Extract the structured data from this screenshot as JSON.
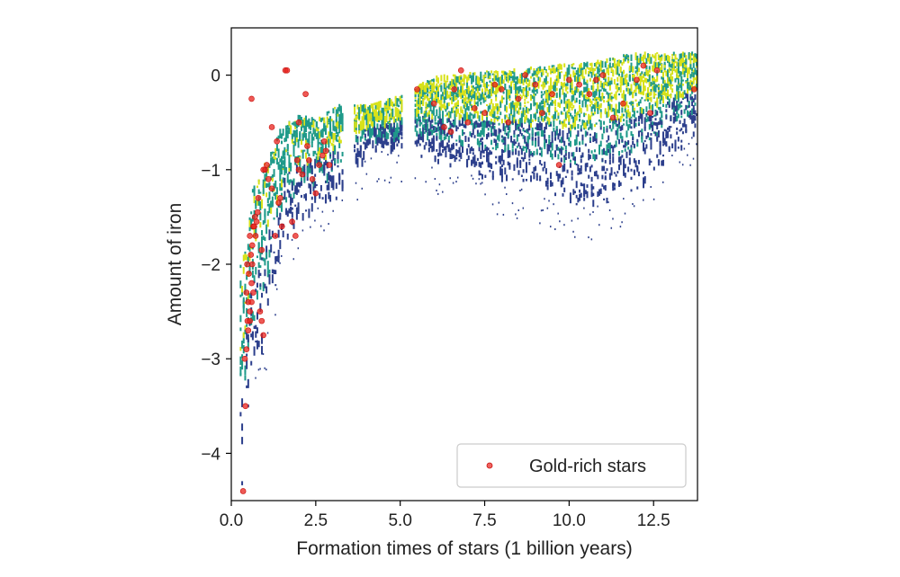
{
  "chart_data": {
    "type": "scatter",
    "xlabel": "Formation times of stars (1 billion years)",
    "ylabel": "Amount of iron",
    "xlim": [
      0,
      13.8
    ],
    "ylim": [
      -4.5,
      0.5
    ],
    "x_ticks": [
      0.0,
      2.5,
      5.0,
      7.5,
      10.0,
      12.5
    ],
    "x_tick_labels": [
      "0.0",
      "2.5",
      "5.0",
      "7.5",
      "10.0",
      "12.5"
    ],
    "y_ticks": [
      0,
      -1,
      -2,
      -3,
      -4
    ],
    "y_tick_labels": [
      "0",
      "−1",
      "−2",
      "−3",
      "−4"
    ],
    "grid": false,
    "legend": {
      "placement": "lower-right"
    },
    "colors": {
      "gold_rich": "#e8211c",
      "density_low": "#2c3f8c",
      "density_mid": "#1f9a8a",
      "density_high": "#d8e21a"
    },
    "background_density_envelope": [
      {
        "x": 0.3,
        "y_low": -4.4,
        "y_high": -2.0
      },
      {
        "x": 0.6,
        "y_low": -3.3,
        "y_high": -1.2
      },
      {
        "x": 1.0,
        "y_low": -2.8,
        "y_high": -0.9
      },
      {
        "x": 1.5,
        "y_low": -1.8,
        "y_high": -0.5
      },
      {
        "x": 2.0,
        "y_low": -1.5,
        "y_high": -0.4
      },
      {
        "x": 2.5,
        "y_low": -1.4,
        "y_high": -0.45
      },
      {
        "x": 3.2,
        "y_low": -1.3,
        "y_high": -0.3
      },
      {
        "x": 4.0,
        "y_low": -0.8,
        "y_high": -0.3
      },
      {
        "x": 5.0,
        "y_low": -0.8,
        "y_high": -0.2
      },
      {
        "x": 6.0,
        "y_low": -0.9,
        "y_high": 0.0
      },
      {
        "x": 7.5,
        "y_low": -1.1,
        "y_high": 0.05
      },
      {
        "x": 9.0,
        "y_low": -1.2,
        "y_high": 0.1
      },
      {
        "x": 10.5,
        "y_low": -1.4,
        "y_high": 0.15
      },
      {
        "x": 12.0,
        "y_low": -1.2,
        "y_high": 0.25
      },
      {
        "x": 13.7,
        "y_low": -0.6,
        "y_high": 0.25
      }
    ],
    "series": [
      {
        "name": "Gold-rich stars",
        "marker": "circle",
        "points": [
          [
            0.35,
            -4.4
          ],
          [
            0.42,
            -3.5
          ],
          [
            0.4,
            -3.0
          ],
          [
            0.45,
            -2.9
          ],
          [
            0.5,
            -2.7
          ],
          [
            0.48,
            -2.6
          ],
          [
            0.55,
            -2.5
          ],
          [
            0.5,
            -2.4
          ],
          [
            0.45,
            -2.3
          ],
          [
            0.6,
            -2.2
          ],
          [
            0.52,
            -2.1
          ],
          [
            0.47,
            -2.0
          ],
          [
            0.58,
            -1.9
          ],
          [
            0.62,
            -1.8
          ],
          [
            0.55,
            -1.7
          ],
          [
            0.65,
            -1.6
          ],
          [
            0.7,
            -1.5
          ],
          [
            0.68,
            -1.6
          ],
          [
            0.72,
            -1.7
          ],
          [
            0.6,
            -2.4
          ],
          [
            0.65,
            -2.3
          ],
          [
            0.55,
            -2.6
          ],
          [
            0.62,
            -2.0
          ],
          [
            0.75,
            -1.55
          ],
          [
            0.78,
            -1.45
          ],
          [
            0.8,
            -1.3
          ],
          [
            0.85,
            -2.5
          ],
          [
            0.9,
            -2.6
          ],
          [
            0.95,
            -2.75
          ],
          [
            0.9,
            -1.85
          ],
          [
            1.0,
            -1.0
          ],
          [
            1.05,
            -0.95
          ],
          [
            1.1,
            -1.1
          ],
          [
            1.2,
            -1.2
          ],
          [
            1.3,
            -1.7
          ],
          [
            1.35,
            -0.7
          ],
          [
            1.4,
            -1.35
          ],
          [
            1.45,
            -1.3
          ],
          [
            1.5,
            -1.6
          ],
          [
            1.6,
            0.05
          ],
          [
            1.65,
            0.05
          ],
          [
            1.8,
            -1.55
          ],
          [
            1.9,
            -1.7
          ],
          [
            1.95,
            -0.9
          ],
          [
            2.0,
            -1.0
          ],
          [
            2.1,
            -1.05
          ],
          [
            2.2,
            -0.2
          ],
          [
            2.25,
            -0.75
          ],
          [
            2.3,
            -0.9
          ],
          [
            2.4,
            -1.1
          ],
          [
            2.5,
            -1.25
          ],
          [
            2.6,
            -0.95
          ],
          [
            2.7,
            -0.85
          ],
          [
            2.75,
            -0.7
          ],
          [
            2.8,
            -0.8
          ],
          [
            2.9,
            -0.95
          ],
          [
            0.6,
            -0.25
          ],
          [
            2.0,
            -0.5
          ],
          [
            1.2,
            -0.55
          ],
          [
            0.95,
            -1.0
          ],
          [
            5.5,
            -0.15
          ],
          [
            6.0,
            -0.3
          ],
          [
            6.3,
            -0.55
          ],
          [
            6.5,
            -0.6
          ],
          [
            6.6,
            -0.15
          ],
          [
            6.8,
            0.05
          ],
          [
            7.0,
            -0.5
          ],
          [
            7.2,
            -0.35
          ],
          [
            7.5,
            -0.4
          ],
          [
            7.8,
            -0.1
          ],
          [
            8.0,
            -0.15
          ],
          [
            8.2,
            -0.5
          ],
          [
            8.5,
            -0.25
          ],
          [
            8.7,
            0.0
          ],
          [
            9.0,
            -0.1
          ],
          [
            9.2,
            -0.4
          ],
          [
            9.5,
            -0.2
          ],
          [
            9.7,
            -0.95
          ],
          [
            10.0,
            -0.05
          ],
          [
            10.3,
            -0.1
          ],
          [
            10.6,
            -0.2
          ],
          [
            10.8,
            -0.05
          ],
          [
            11.0,
            0.0
          ],
          [
            11.3,
            -0.45
          ],
          [
            11.6,
            -0.3
          ],
          [
            12.0,
            -0.05
          ],
          [
            12.2,
            0.1
          ],
          [
            12.4,
            -0.4
          ],
          [
            12.6,
            0.05
          ],
          [
            13.7,
            -0.15
          ]
        ]
      }
    ]
  }
}
